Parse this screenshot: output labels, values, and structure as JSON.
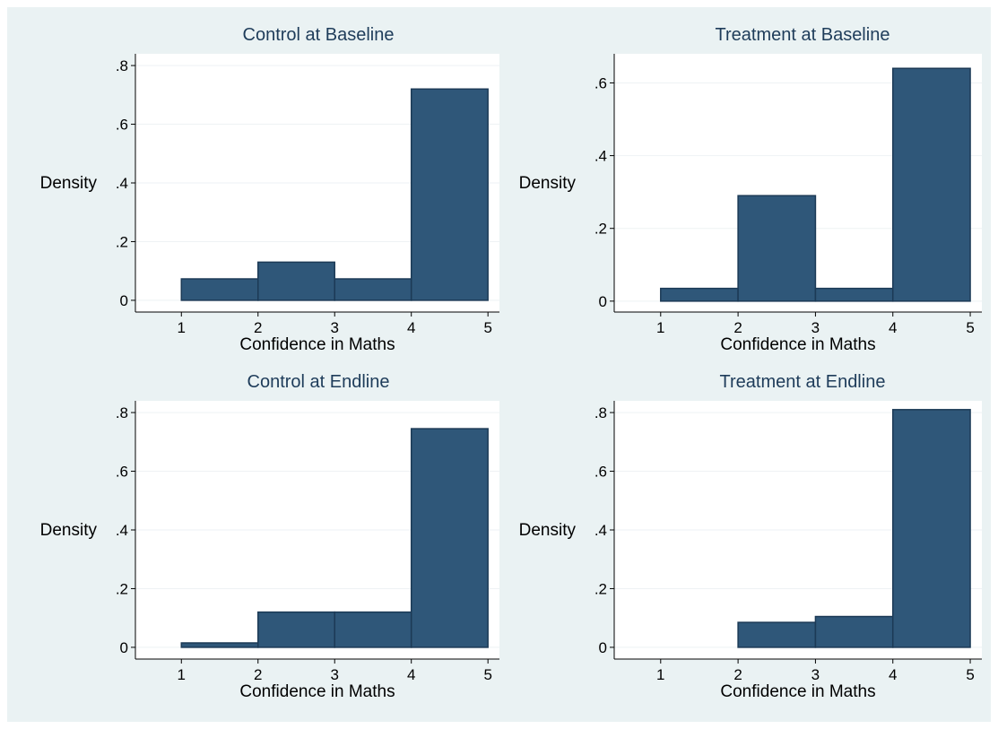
{
  "figure": {
    "background": "#eaf2f3",
    "plot_background": "#ffffff",
    "bar_color": "#2f5779",
    "bar_edge": "#1c3a56",
    "title_color": "#1e3c5a",
    "grid_color": "#eef2f4"
  },
  "chart_data": [
    {
      "type": "bar",
      "title": "Control at Baseline",
      "xlabel": "Confidence in Maths",
      "ylabel": "Density",
      "xlim": [
        0.4,
        5.15
      ],
      "ylim": [
        -0.04,
        0.84
      ],
      "xticks": [
        "1",
        "2",
        "3",
        "4",
        "5"
      ],
      "yticks": [
        {
          "value": 0,
          "label": "0"
        },
        {
          "value": 0.2,
          "label": ".2"
        },
        {
          "value": 0.4,
          "label": ".4"
        },
        {
          "value": 0.6,
          "label": ".6"
        },
        {
          "value": 0.8,
          "label": ".8"
        }
      ],
      "bins": [
        [
          1,
          2
        ],
        [
          2,
          3
        ],
        [
          3,
          4
        ],
        [
          4,
          5
        ]
      ],
      "values": [
        0.073,
        0.13,
        0.073,
        0.72
      ]
    },
    {
      "type": "bar",
      "title": "Treatment at Baseline",
      "xlabel": "Confidence in Maths",
      "ylabel": "Density",
      "xlim": [
        0.4,
        5.15
      ],
      "ylim": [
        -0.03,
        0.68
      ],
      "xticks": [
        "1",
        "2",
        "3",
        "4",
        "5"
      ],
      "yticks": [
        {
          "value": 0,
          "label": "0"
        },
        {
          "value": 0.2,
          "label": ".2"
        },
        {
          "value": 0.4,
          "label": ".4"
        },
        {
          "value": 0.6,
          "label": ".6"
        }
      ],
      "bins": [
        [
          1,
          2
        ],
        [
          2,
          3
        ],
        [
          3,
          4
        ],
        [
          4,
          5
        ]
      ],
      "values": [
        0.035,
        0.29,
        0.035,
        0.64
      ]
    },
    {
      "type": "bar",
      "title": "Control at Endline",
      "xlabel": "Confidence in Maths",
      "ylabel": "Density",
      "xlim": [
        0.4,
        5.15
      ],
      "ylim": [
        -0.04,
        0.84
      ],
      "xticks": [
        "1",
        "2",
        "3",
        "4",
        "5"
      ],
      "yticks": [
        {
          "value": 0,
          "label": "0"
        },
        {
          "value": 0.2,
          "label": ".2"
        },
        {
          "value": 0.4,
          "label": ".4"
        },
        {
          "value": 0.6,
          "label": ".6"
        },
        {
          "value": 0.8,
          "label": ".8"
        }
      ],
      "bins": [
        [
          1,
          2
        ],
        [
          2,
          3
        ],
        [
          3,
          4
        ],
        [
          4,
          5
        ]
      ],
      "values": [
        0.015,
        0.12,
        0.12,
        0.745
      ]
    },
    {
      "type": "bar",
      "title": "Treatment at Endline",
      "xlabel": "Confidence in Maths",
      "ylabel": "Density",
      "xlim": [
        0.4,
        5.15
      ],
      "ylim": [
        -0.04,
        0.84
      ],
      "xticks": [
        "1",
        "2",
        "3",
        "4",
        "5"
      ],
      "yticks": [
        {
          "value": 0,
          "label": "0"
        },
        {
          "value": 0.2,
          "label": ".2"
        },
        {
          "value": 0.4,
          "label": ".4"
        },
        {
          "value": 0.6,
          "label": ".6"
        },
        {
          "value": 0.8,
          "label": ".8"
        }
      ],
      "bins": [
        [
          2,
          3
        ],
        [
          3,
          4
        ],
        [
          4,
          5
        ]
      ],
      "values": [
        0.085,
        0.105,
        0.81
      ]
    }
  ]
}
